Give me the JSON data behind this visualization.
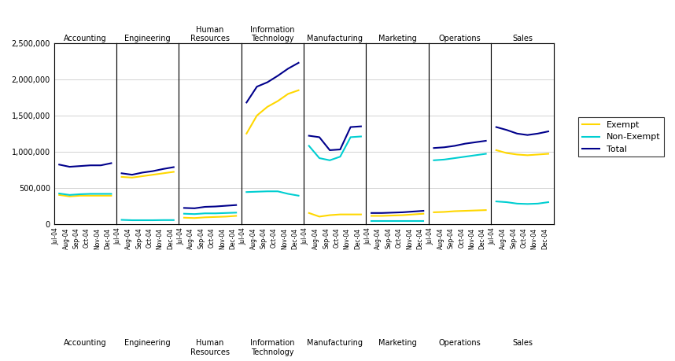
{
  "departments": [
    "Accounting",
    "Engineering",
    "Human\nResources",
    "Information\nTechnology",
    "Manufacturing",
    "Marketing",
    "Operations",
    "Sales"
  ],
  "departments_top": [
    "Accounting",
    "Engineering",
    "Human\nResources",
    "Information\nTechnology",
    "Manufacturing",
    "Marketing",
    "Operations",
    "Sales"
  ],
  "months": [
    "Jul-04",
    "Aug-04",
    "Sep-04",
    "Oct-04",
    "Nov-04",
    "Dec-04"
  ],
  "exempt": {
    "Accounting": [
      400000,
      380000,
      390000,
      390000,
      390000,
      390000
    ],
    "Engineering": [
      650000,
      640000,
      660000,
      680000,
      700000,
      720000
    ],
    "Human Resources": [
      85000,
      80000,
      90000,
      95000,
      100000,
      110000
    ],
    "Information Technology": [
      1250000,
      1500000,
      1620000,
      1700000,
      1800000,
      1850000
    ],
    "Manufacturing": [
      150000,
      100000,
      120000,
      130000,
      130000,
      130000
    ],
    "Marketing": [
      110000,
      110000,
      115000,
      120000,
      130000,
      140000
    ],
    "Operations": [
      160000,
      165000,
      175000,
      180000,
      185000,
      190000
    ],
    "Sales": [
      1020000,
      980000,
      960000,
      950000,
      960000,
      970000
    ]
  },
  "non_exempt": {
    "Accounting": [
      420000,
      400000,
      410000,
      415000,
      415000,
      415000
    ],
    "Engineering": [
      55000,
      50000,
      50000,
      50000,
      52000,
      52000
    ],
    "Human Resources": [
      140000,
      135000,
      145000,
      145000,
      150000,
      155000
    ],
    "Information Technology": [
      440000,
      445000,
      450000,
      450000,
      415000,
      390000
    ],
    "Manufacturing": [
      1080000,
      910000,
      880000,
      930000,
      1200000,
      1210000
    ],
    "Marketing": [
      40000,
      40000,
      40000,
      40000,
      40000,
      40000
    ],
    "Operations": [
      880000,
      890000,
      910000,
      930000,
      950000,
      970000
    ],
    "Sales": [
      310000,
      300000,
      280000,
      275000,
      280000,
      300000
    ]
  },
  "total": {
    "Accounting": [
      820000,
      790000,
      800000,
      810000,
      810000,
      840000
    ],
    "Engineering": [
      700000,
      680000,
      710000,
      730000,
      760000,
      785000
    ],
    "Human Resources": [
      220000,
      215000,
      235000,
      240000,
      250000,
      260000
    ],
    "Information Technology": [
      1680000,
      1900000,
      1960000,
      2050000,
      2150000,
      2230000
    ],
    "Manufacturing": [
      1220000,
      1200000,
      1020000,
      1030000,
      1340000,
      1350000
    ],
    "Marketing": [
      150000,
      150000,
      155000,
      160000,
      170000,
      180000
    ],
    "Operations": [
      1050000,
      1060000,
      1080000,
      1110000,
      1130000,
      1150000
    ],
    "Sales": [
      1340000,
      1300000,
      1250000,
      1230000,
      1250000,
      1280000
    ]
  },
  "exempt_color": "#FFD700",
  "non_exempt_color": "#00CED1",
  "total_color": "#00008B",
  "ylim": [
    0,
    2500000
  ],
  "yticks": [
    0,
    500000,
    1000000,
    1500000,
    2000000,
    2500000
  ],
  "ytick_labels": [
    "0",
    "500,000",
    "1,000,000",
    "1,500,000",
    "2,000,000",
    "2,500,000"
  ],
  "background_color": "#FFFFFF",
  "panel_line_color": "#000000",
  "grid_color": "#C0C0C0"
}
